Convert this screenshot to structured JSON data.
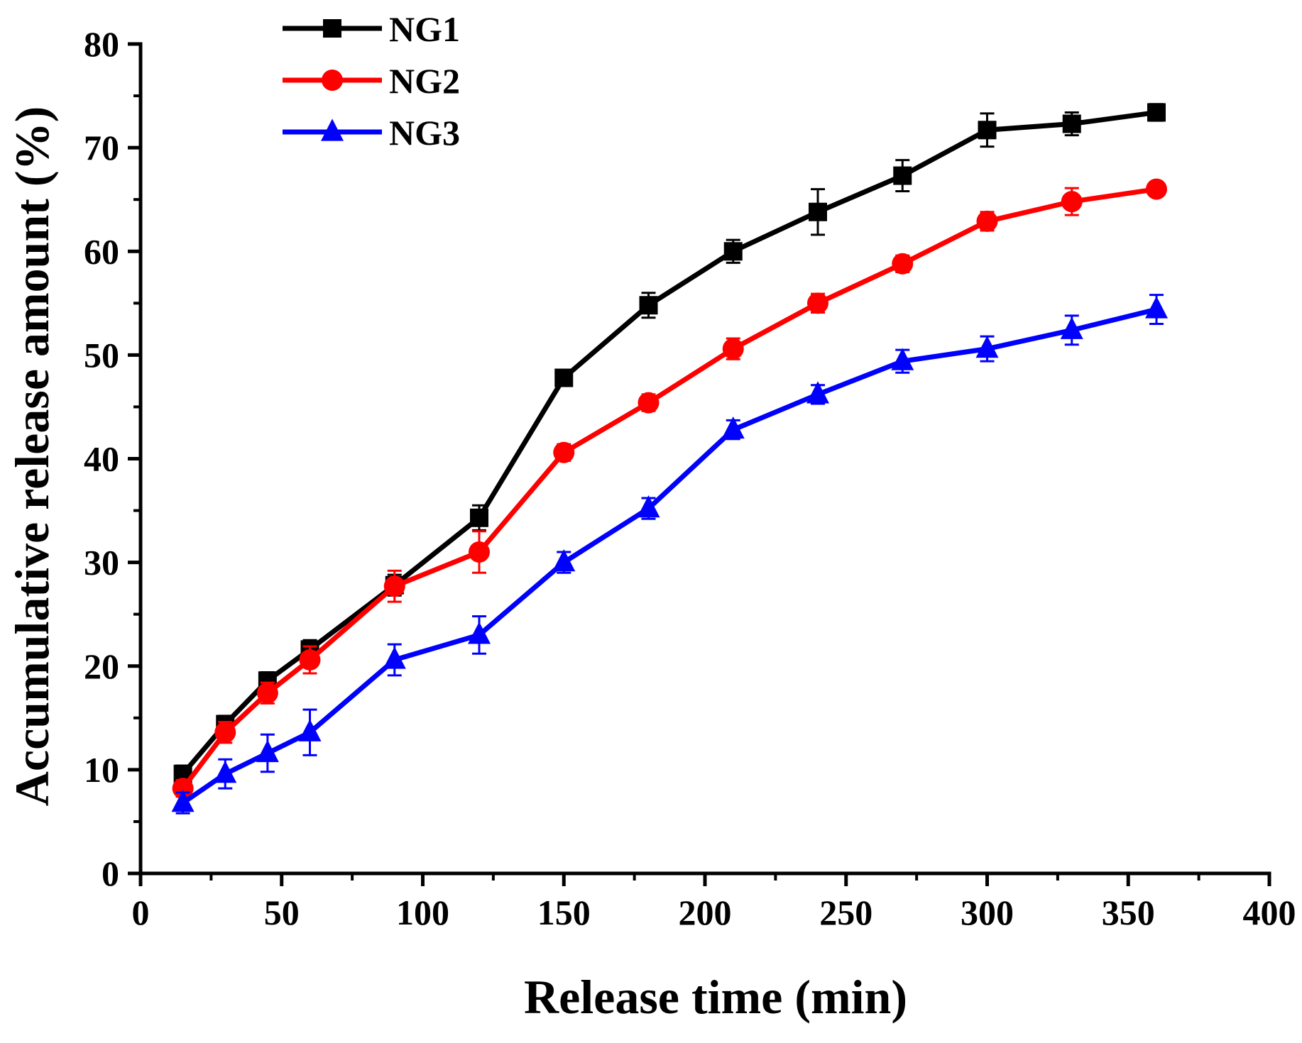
{
  "chart_data": {
    "type": "line",
    "title": "",
    "xlabel": "Release time (min)",
    "ylabel": "Accumulative release amount (%)",
    "xlim": [
      0,
      400
    ],
    "ylim": [
      0,
      80
    ],
    "x_ticks": [
      0,
      50,
      100,
      150,
      200,
      250,
      300,
      350,
      400
    ],
    "x_tick_labels": [
      "0",
      "50",
      "100",
      "150",
      "200",
      "250",
      "300",
      "350",
      "400"
    ],
    "y_ticks": [
      0,
      10,
      20,
      30,
      40,
      50,
      60,
      70,
      80
    ],
    "y_tick_labels": [
      "0",
      "10",
      "20",
      "30",
      "40",
      "50",
      "60",
      "70",
      "80"
    ],
    "grid": false,
    "legend_position": "top-left",
    "x": [
      15,
      30,
      45,
      60,
      90,
      120,
      150,
      180,
      210,
      240,
      270,
      300,
      330,
      360
    ],
    "series": [
      {
        "name": "NG1",
        "color": "#000000",
        "marker": "square",
        "values": [
          9.6,
          14.4,
          18.6,
          21.6,
          27.8,
          34.3,
          47.8,
          54.8,
          60.0,
          63.8,
          67.3,
          71.7,
          72.3,
          73.4
        ],
        "errors": [
          0.8,
          0.8,
          0.8,
          0.9,
          1.0,
          1.2,
          0.6,
          1.2,
          1.1,
          2.2,
          1.5,
          1.6,
          1.1,
          0.8
        ]
      },
      {
        "name": "NG2",
        "color": "#ff0000",
        "marker": "circle",
        "values": [
          8.2,
          13.6,
          17.4,
          20.6,
          27.7,
          31.0,
          40.6,
          45.4,
          50.6,
          55.0,
          58.8,
          62.9,
          64.8,
          66.0
        ],
        "errors": [
          0.8,
          1.0,
          1.0,
          1.3,
          1.5,
          2.0,
          0.8,
          0.8,
          1.0,
          0.9,
          0.8,
          0.9,
          1.3,
          0.6
        ]
      },
      {
        "name": "NG3",
        "color": "#0000ff",
        "marker": "triangle",
        "values": [
          6.8,
          9.6,
          11.6,
          13.6,
          20.6,
          23.0,
          30.0,
          35.2,
          42.8,
          46.2,
          49.4,
          50.6,
          52.4,
          54.4
        ],
        "errors": [
          1.0,
          1.4,
          1.8,
          2.2,
          1.5,
          1.8,
          1.0,
          1.0,
          0.9,
          0.9,
          1.1,
          1.2,
          1.4,
          1.4
        ]
      }
    ]
  }
}
